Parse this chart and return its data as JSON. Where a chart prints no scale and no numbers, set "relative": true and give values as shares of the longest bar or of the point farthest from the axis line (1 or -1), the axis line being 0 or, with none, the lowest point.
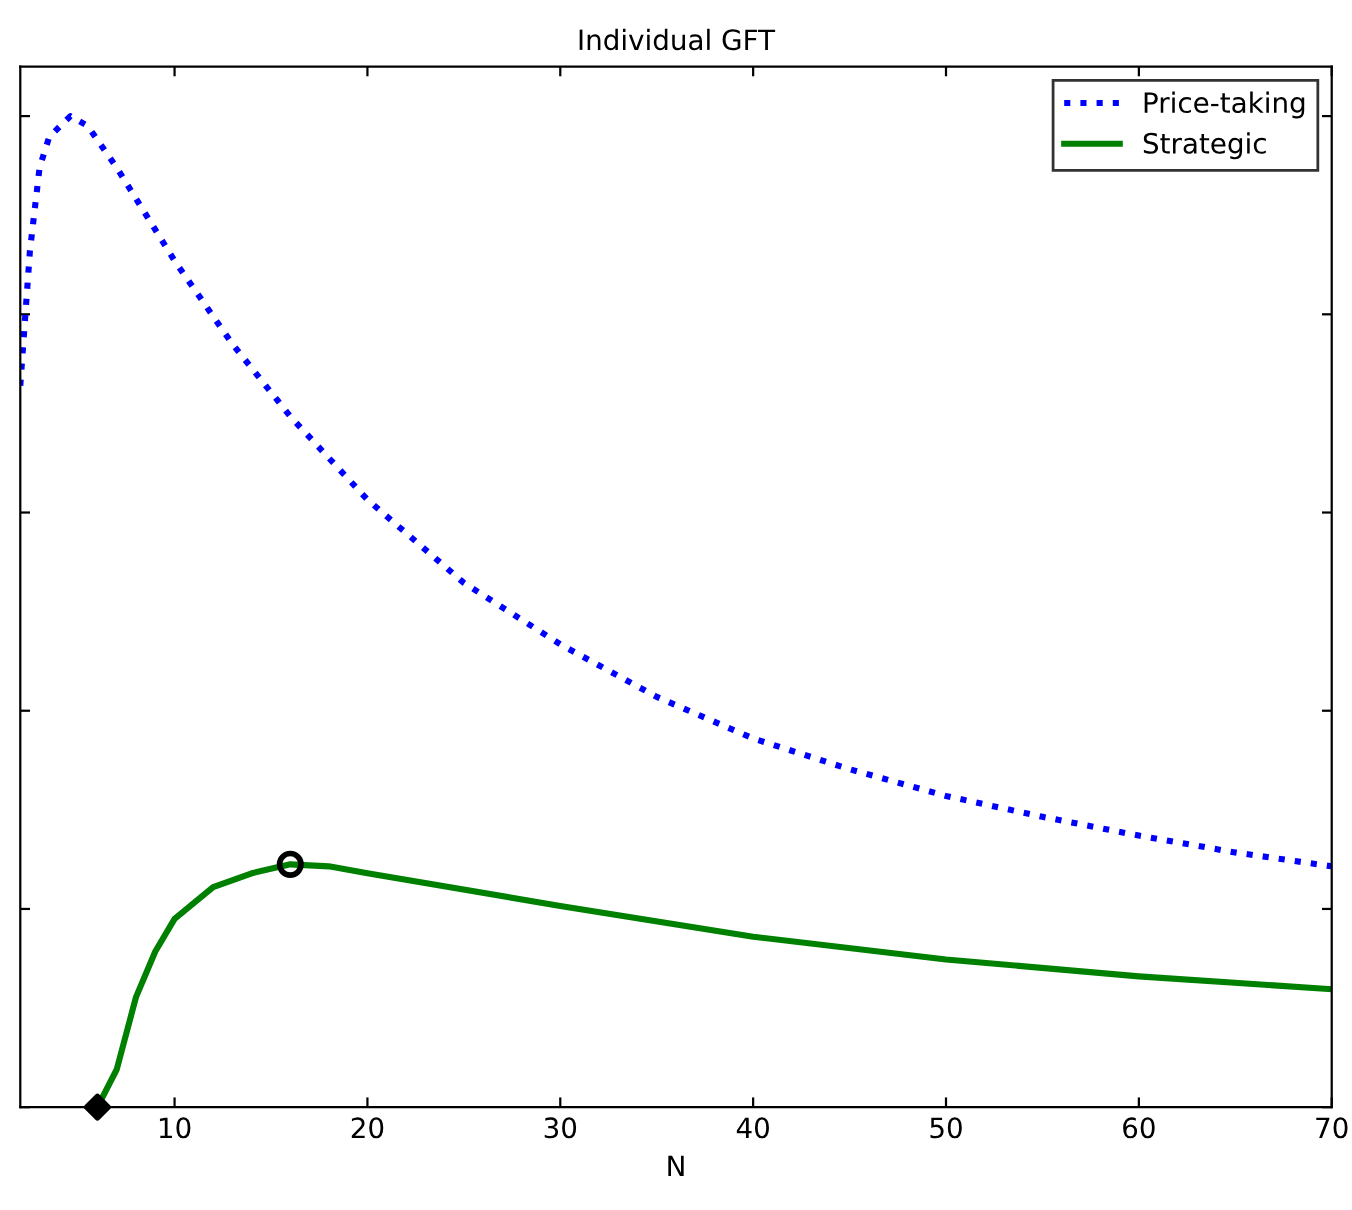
{
  "chart_data": {
    "type": "line",
    "title": "Individual GFT",
    "xlabel": "N",
    "relative": true,
    "xlim": [
      2,
      70
    ],
    "xticks": [
      10,
      20,
      30,
      40,
      50,
      60,
      70
    ],
    "tick_labels": "x",
    "grid": false,
    "legend": "top right",
    "series": [
      {
        "name": "Price-taking",
        "color": "#0000ff",
        "line_style": "dotted",
        "marker": "none",
        "x": [
          2,
          2.5,
          3,
          3.5,
          4.6,
          5.5,
          7,
          10,
          13,
          16,
          20,
          25,
          30,
          35,
          40,
          45,
          50,
          55,
          60,
          65,
          70
        ],
        "values": [
          0.728,
          0.864,
          0.948,
          0.979,
          1.0,
          0.99,
          0.948,
          0.854,
          0.77,
          0.697,
          0.613,
          0.529,
          0.467,
          0.414,
          0.372,
          0.341,
          0.314,
          0.293,
          0.274,
          0.257,
          0.243
        ]
      },
      {
        "name": "Strategic",
        "color": "#008000",
        "line_style": "solid",
        "marker": "none",
        "x": [
          6,
          7,
          8,
          9,
          10,
          12,
          14,
          16,
          18,
          20,
          30,
          40,
          50,
          60,
          70
        ],
        "values": [
          0,
          0.038,
          0.111,
          0.157,
          0.19,
          0.222,
          0.236,
          0.245,
          0.243,
          0.236,
          0.203,
          0.172,
          0.149,
          0.132,
          0.119
        ]
      },
      {
        "type": "scatter",
        "color": "#000000",
        "marker": "circle",
        "x": [
          16
        ],
        "values": [
          0.245
        ]
      },
      {
        "type": "scatter",
        "color": "#000000",
        "marker": "diamond",
        "x": [
          6
        ],
        "values": [
          0
        ]
      }
    ]
  }
}
